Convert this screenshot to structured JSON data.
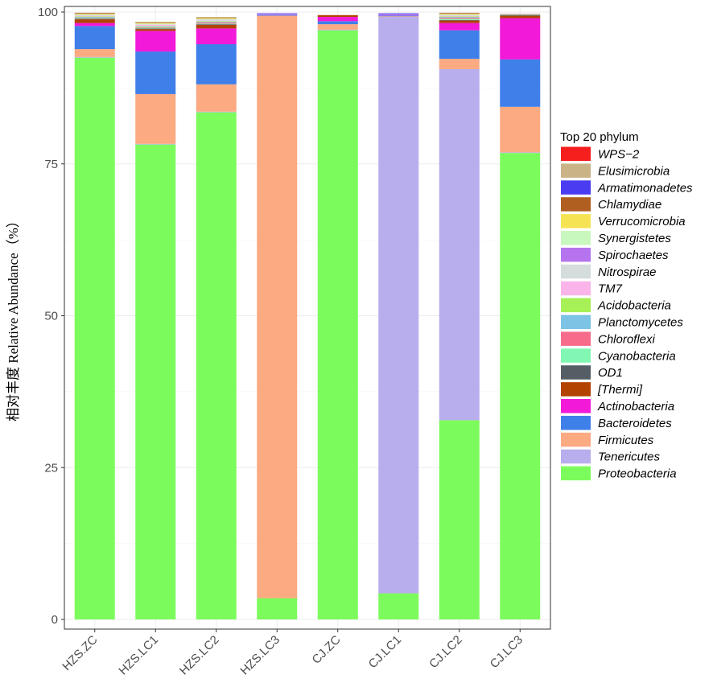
{
  "chart_data": {
    "type": "bar",
    "stacked": true,
    "ylabel": "相对丰度  Relative Abundance（%）",
    "ylim": [
      0,
      100
    ],
    "yticks": [
      0,
      25,
      50,
      75,
      100
    ],
    "grid": true,
    "legend_position": "right",
    "legend_title": "Top 20 phylum",
    "categories": [
      "HZS.ZC",
      "HZS.LC1",
      "HZS.LC2",
      "HZS.LC3",
      "CJ.ZC",
      "CJ.LC1",
      "CJ.LC2",
      "CJ.LC3"
    ],
    "series": [
      {
        "name": "Proteobacteria",
        "color": "#7CFC5C",
        "values": [
          92.5,
          78.2,
          83.5,
          3.5,
          97.0,
          4.3,
          32.8,
          76.8
        ]
      },
      {
        "name": "Tenericutes",
        "color": "#B8AEEE",
        "values": [
          0.1,
          0.1,
          0.1,
          0.0,
          0.1,
          94.9,
          57.8,
          0.1
        ]
      },
      {
        "name": "Firmicutes",
        "color": "#FBAA82",
        "values": [
          1.3,
          8.2,
          4.5,
          95.9,
          0.9,
          0.1,
          1.7,
          7.5
        ]
      },
      {
        "name": "Bacteroidetes",
        "color": "#3F7FEA",
        "values": [
          3.8,
          7.0,
          6.6,
          0.1,
          0.5,
          0.1,
          4.7,
          7.8
        ]
      },
      {
        "name": "Actinobacteria",
        "color": "#F21AD8",
        "values": [
          0.5,
          3.4,
          2.6,
          0.0,
          0.7,
          0.0,
          1.2,
          6.8
        ]
      },
      {
        "name": "[Thermi]",
        "color": "#B24300",
        "values": [
          0.6,
          0.3,
          0.6,
          0.0,
          0.3,
          0.0,
          0.4,
          0.4
        ]
      },
      {
        "name": "OD1",
        "color": "#555E64",
        "values": [
          0.1,
          0.1,
          0.1,
          0.0,
          0.0,
          0.0,
          0.1,
          0.1
        ]
      },
      {
        "name": "Cyanobacteria",
        "color": "#82F7B3",
        "values": [
          0.1,
          0.1,
          0.1,
          0.0,
          0.0,
          0.0,
          0.2,
          0.1
        ]
      },
      {
        "name": "Chloroflexi",
        "color": "#F66C8A",
        "values": [
          0.1,
          0.1,
          0.2,
          0.0,
          0.0,
          0.0,
          0.2,
          0.1
        ]
      },
      {
        "name": "Planctomycetes",
        "color": "#7CC3E6",
        "values": [
          0.1,
          0.1,
          0.1,
          0.0,
          0.0,
          0.0,
          0.1,
          0.0
        ]
      },
      {
        "name": "Acidobacteria",
        "color": "#A7F056",
        "values": [
          0.1,
          0.1,
          0.1,
          0.0,
          0.0,
          0.0,
          0.1,
          0.0
        ]
      },
      {
        "name": "TM7",
        "color": "#FBB4E9",
        "values": [
          0.1,
          0.2,
          0.1,
          0.0,
          0.0,
          0.0,
          0.1,
          0.0
        ]
      },
      {
        "name": "Nitrospirae",
        "color": "#D4DCDC",
        "values": [
          0.1,
          0.1,
          0.2,
          0.0,
          0.0,
          0.0,
          0.1,
          0.0
        ]
      },
      {
        "name": "Spirochaetes",
        "color": "#B574EE",
        "values": [
          0.0,
          0.0,
          0.0,
          0.2,
          0.0,
          0.3,
          0.0,
          0.0
        ]
      },
      {
        "name": "Synergistetes",
        "color": "#C8F8BE",
        "values": [
          0.1,
          0.1,
          0.1,
          0.0,
          0.0,
          0.0,
          0.1,
          0.0
        ]
      },
      {
        "name": "Verrucomicrobia",
        "color": "#F6E354",
        "values": [
          0.1,
          0.1,
          0.1,
          0.0,
          0.0,
          0.0,
          0.1,
          0.0
        ]
      },
      {
        "name": "Chlamydiae",
        "color": "#B15E21",
        "values": [
          0.1,
          0.1,
          0.1,
          0.0,
          0.0,
          0.0,
          0.1,
          0.0
        ]
      },
      {
        "name": "Armatimonadetes",
        "color": "#4A3CF0",
        "values": [
          0.0,
          0.0,
          0.0,
          0.1,
          0.0,
          0.1,
          0.0,
          0.0
        ]
      },
      {
        "name": "Elusimicrobia",
        "color": "#C9B387",
        "values": [
          0.1,
          0.1,
          0.1,
          0.0,
          0.0,
          0.0,
          0.1,
          0.0
        ]
      },
      {
        "name": "WPS-2",
        "color": "#F71E1E",
        "values": [
          0.0,
          0.0,
          0.0,
          0.0,
          0.0,
          0.0,
          0.0,
          0.0
        ]
      }
    ],
    "legend_order": [
      "WPS−2",
      "Elusimicrobia",
      "Armatimonadetes",
      "Chlamydiae",
      "Verrucomicrobia",
      "Synergistetes",
      "Spirochaetes",
      "Nitrospirae",
      "TM7",
      "Acidobacteria",
      "Planctomycetes",
      "Chloroflexi",
      "Cyanobacteria",
      "OD1",
      "[Thermi]",
      "Actinobacteria",
      "Bacteroidetes",
      "Firmicutes",
      "Tenericutes",
      "Proteobacteria"
    ]
  }
}
